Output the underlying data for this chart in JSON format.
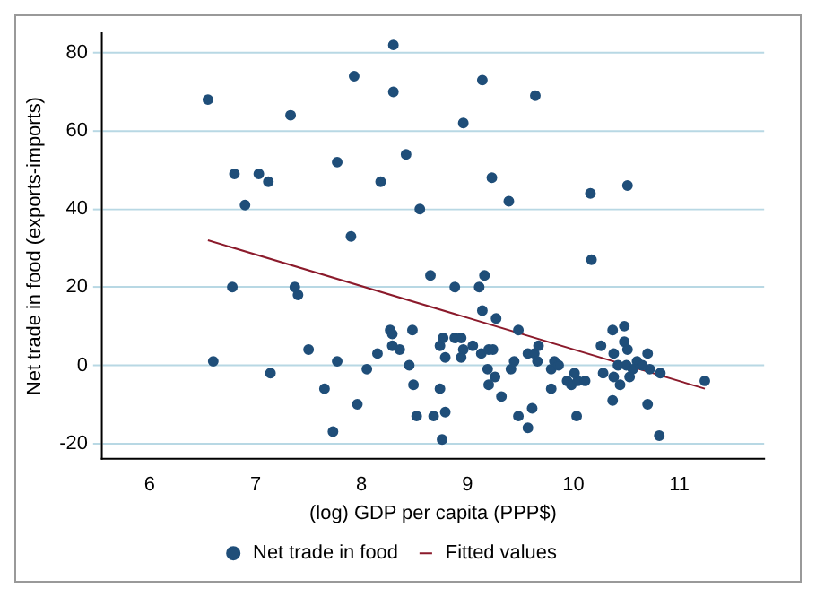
{
  "chart_data": {
    "type": "scatter",
    "xlabel": "(log) GDP per capita (PPP$)",
    "ylabel": "Net trade in food (exports-imports)",
    "xlim": [
      5.55,
      11.8
    ],
    "xticks": [
      6,
      7,
      8,
      9,
      10,
      11
    ],
    "ylim": [
      -24,
      85
    ],
    "yticks": [
      -20,
      0,
      20,
      40,
      60,
      80
    ],
    "grid": "y",
    "legend": "bottom",
    "series": [
      {
        "name": "Net trade in food",
        "marker": "circle",
        "color": "#1f4e79",
        "x": [
          6.55,
          7.93,
          8.3,
          7.33,
          8.3,
          9.14,
          9.64,
          8.96,
          8.42,
          8.18,
          9.23,
          9.39,
          10.16,
          10.51,
          8.55,
          10.17,
          8.65,
          9.16,
          8.88,
          9.11,
          6.8,
          7.03,
          7.12,
          7.77,
          6.9,
          7.9,
          6.78,
          7.37,
          7.4,
          7.5,
          6.6,
          7.14,
          7.77,
          7.65,
          7.73,
          7.96,
          8.05,
          8.15,
          8.27,
          8.29,
          8.36,
          8.29,
          9.14,
          9.27,
          9.48,
          8.48,
          8.45,
          8.49,
          8.52,
          8.68,
          8.79,
          8.76,
          8.74,
          8.77,
          8.74,
          8.79,
          8.88,
          8.94,
          8.96,
          8.94,
          9.05,
          9.13,
          9.2,
          9.24,
          9.19,
          9.26,
          9.2,
          9.32,
          9.41,
          9.44,
          9.48,
          9.61,
          9.57,
          9.57,
          9.63,
          9.67,
          9.66,
          9.79,
          9.79,
          9.82,
          9.86,
          9.94,
          9.98,
          10.01,
          10.04,
          10.11,
          10.03,
          10.26,
          10.37,
          10.48,
          10.48,
          10.51,
          10.38,
          10.42,
          10.28,
          10.38,
          10.44,
          10.5,
          10.53,
          10.6,
          10.7,
          10.72,
          10.82,
          10.37,
          10.7,
          10.81,
          11.24,
          10.56,
          10.65
        ],
        "values": [
          68,
          74,
          82,
          64,
          70,
          73,
          69,
          62,
          54,
          47,
          48,
          42,
          44,
          46,
          40,
          27,
          23,
          23,
          20,
          20,
          49,
          49,
          47,
          52,
          41,
          33,
          20,
          20,
          18,
          4,
          1,
          -2,
          1,
          -6,
          -17,
          -10,
          -1,
          3,
          9,
          5,
          4,
          8,
          14,
          12,
          9,
          9,
          0,
          -5,
          -13,
          -13,
          -12,
          -19,
          -6,
          7,
          5,
          2,
          7,
          7,
          4,
          2,
          5,
          3,
          4,
          4,
          -1,
          -3,
          -5,
          -8,
          -1,
          1,
          -13,
          -11,
          -16,
          3,
          3,
          5,
          1,
          -1,
          -6,
          1,
          0,
          -4,
          -5,
          -2,
          -4,
          -4,
          -13,
          5,
          9,
          10,
          6,
          4,
          3,
          0,
          -2,
          -3,
          -5,
          0,
          -3,
          1,
          3,
          -1,
          -2,
          -9,
          -10,
          -18,
          -4,
          -1,
          0
        ]
      },
      {
        "name": "Fitted values",
        "type": "line",
        "color": "#8b1a2b",
        "x": [
          6.55,
          11.24
        ],
        "values": [
          32,
          -6
        ]
      }
    ]
  }
}
